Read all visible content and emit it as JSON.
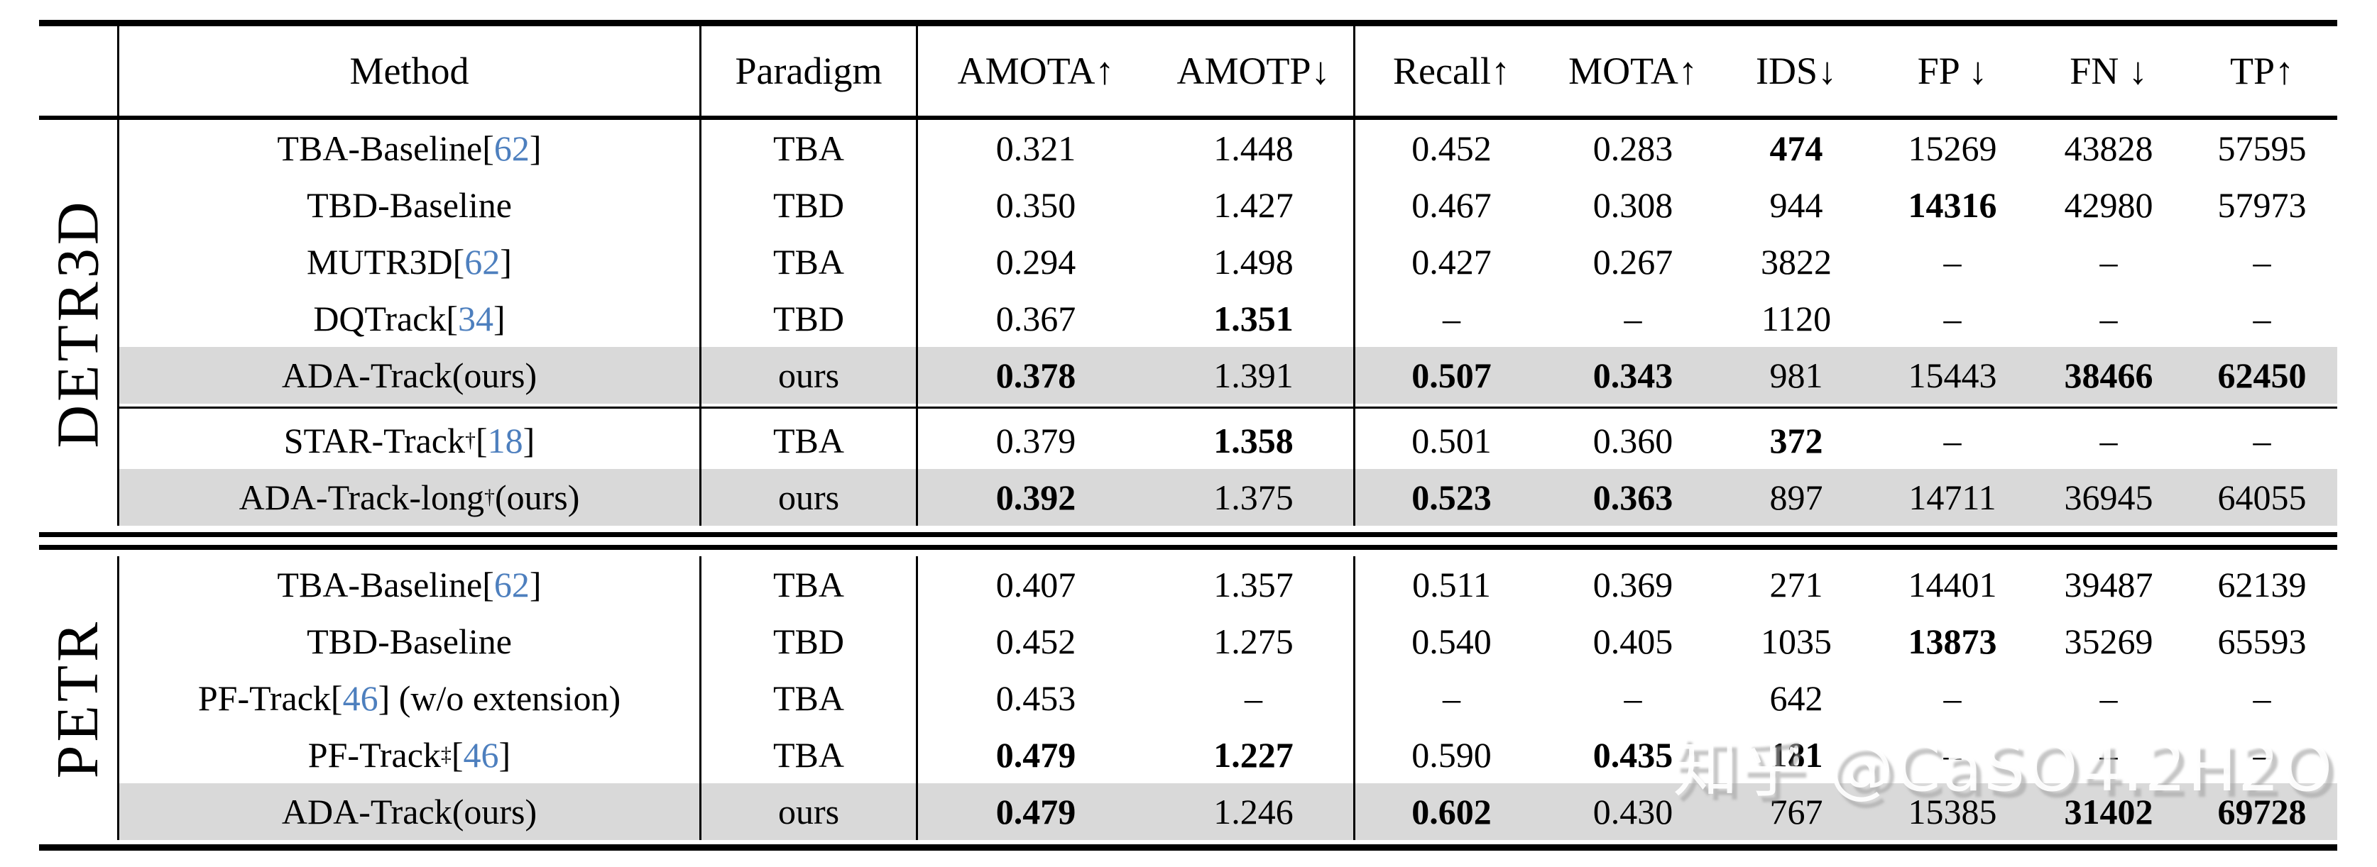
{
  "watermark": {
    "text": "知乎 @CaSO4.2H2O"
  },
  "colors": {
    "citation_blue": "#4d7fbe",
    "highlight_gray": "#d9d9d9",
    "rule_black": "#000000"
  },
  "table": {
    "columns": [
      {
        "key": "method",
        "label": "Method"
      },
      {
        "key": "paradigm",
        "label": "Paradigm"
      },
      {
        "key": "amota",
        "label": "AMOTA↑"
      },
      {
        "key": "amotp",
        "label": "AMOTP↓"
      },
      {
        "key": "recall",
        "label": "Recall↑"
      },
      {
        "key": "mota",
        "label": "MOTA↑"
      },
      {
        "key": "ids",
        "label": "IDS↓"
      },
      {
        "key": "fp",
        "label": "FP ↓"
      },
      {
        "key": "fn",
        "label": "FN ↓"
      },
      {
        "key": "tp",
        "label": "TP↑"
      }
    ],
    "groups": [
      {
        "label": "DETR3D",
        "subgroups": [
          {
            "rows": [
              {
                "highlight": false,
                "method": {
                  "name": "TBA-Baseline",
                  "sup": "",
                  "cite": "62",
                  "suffix": ""
                },
                "paradigm": "TBA",
                "metrics": [
                  {
                    "v": "0.321"
                  },
                  {
                    "v": "1.448"
                  },
                  {
                    "v": "0.452"
                  },
                  {
                    "v": "0.283"
                  },
                  {
                    "v": "474",
                    "b": true
                  },
                  {
                    "v": "15269"
                  },
                  {
                    "v": "43828"
                  },
                  {
                    "v": "57595"
                  }
                ]
              },
              {
                "highlight": false,
                "method": {
                  "name": "TBD-Baseline",
                  "sup": "",
                  "cite": "",
                  "suffix": ""
                },
                "paradigm": "TBD",
                "metrics": [
                  {
                    "v": "0.350"
                  },
                  {
                    "v": "1.427"
                  },
                  {
                    "v": "0.467"
                  },
                  {
                    "v": "0.308"
                  },
                  {
                    "v": "944"
                  },
                  {
                    "v": "14316",
                    "b": true
                  },
                  {
                    "v": "42980"
                  },
                  {
                    "v": "57973"
                  }
                ]
              },
              {
                "highlight": false,
                "method": {
                  "name": "MUTR3D",
                  "sup": "",
                  "cite": "62",
                  "suffix": ""
                },
                "paradigm": "TBA",
                "metrics": [
                  {
                    "v": "0.294"
                  },
                  {
                    "v": "1.498"
                  },
                  {
                    "v": "0.427"
                  },
                  {
                    "v": "0.267"
                  },
                  {
                    "v": "3822"
                  },
                  {
                    "v": "–"
                  },
                  {
                    "v": "–"
                  },
                  {
                    "v": "–"
                  }
                ]
              },
              {
                "highlight": false,
                "method": {
                  "name": "DQTrack",
                  "sup": "",
                  "cite": "34",
                  "suffix": ""
                },
                "paradigm": "TBD",
                "metrics": [
                  {
                    "v": "0.367"
                  },
                  {
                    "v": "1.351",
                    "b": true
                  },
                  {
                    "v": "–"
                  },
                  {
                    "v": "–"
                  },
                  {
                    "v": "1120"
                  },
                  {
                    "v": "–"
                  },
                  {
                    "v": "–"
                  },
                  {
                    "v": "–"
                  }
                ]
              },
              {
                "highlight": true,
                "method": {
                  "name": "ADA-Track",
                  "sup": "",
                  "cite": "",
                  "suffix": " (ours)"
                },
                "paradigm": "ours",
                "metrics": [
                  {
                    "v": "0.378",
                    "b": true
                  },
                  {
                    "v": "1.391"
                  },
                  {
                    "v": "0.507",
                    "b": true
                  },
                  {
                    "v": "0.343",
                    "b": true
                  },
                  {
                    "v": "981"
                  },
                  {
                    "v": "15443"
                  },
                  {
                    "v": "38466",
                    "b": true
                  },
                  {
                    "v": "62450",
                    "b": true
                  }
                ]
              }
            ]
          },
          {
            "rows": [
              {
                "highlight": false,
                "method": {
                  "name": "STAR-Track",
                  "sup": "†",
                  "cite": "18",
                  "suffix": ""
                },
                "paradigm": "TBA",
                "metrics": [
                  {
                    "v": "0.379"
                  },
                  {
                    "v": "1.358",
                    "b": true
                  },
                  {
                    "v": "0.501"
                  },
                  {
                    "v": "0.360"
                  },
                  {
                    "v": "372",
                    "b": true
                  },
                  {
                    "v": "–"
                  },
                  {
                    "v": "–"
                  },
                  {
                    "v": "–"
                  }
                ]
              },
              {
                "highlight": true,
                "method": {
                  "name": "ADA-Track-long",
                  "sup": "†",
                  "cite": "",
                  "suffix": " (ours)"
                },
                "paradigm": "ours",
                "metrics": [
                  {
                    "v": "0.392",
                    "b": true
                  },
                  {
                    "v": "1.375"
                  },
                  {
                    "v": "0.523",
                    "b": true
                  },
                  {
                    "v": "0.363",
                    "b": true
                  },
                  {
                    "v": "897"
                  },
                  {
                    "v": "14711"
                  },
                  {
                    "v": "36945"
                  },
                  {
                    "v": "64055"
                  }
                ]
              }
            ]
          }
        ]
      },
      {
        "label": "PETR",
        "subgroups": [
          {
            "rows": [
              {
                "highlight": false,
                "method": {
                  "name": "TBA-Baseline",
                  "sup": "",
                  "cite": "62",
                  "suffix": ""
                },
                "paradigm": "TBA",
                "metrics": [
                  {
                    "v": "0.407"
                  },
                  {
                    "v": "1.357"
                  },
                  {
                    "v": "0.511"
                  },
                  {
                    "v": "0.369"
                  },
                  {
                    "v": "271"
                  },
                  {
                    "v": "14401"
                  },
                  {
                    "v": "39487"
                  },
                  {
                    "v": "62139"
                  }
                ]
              },
              {
                "highlight": false,
                "method": {
                  "name": "TBD-Baseline",
                  "sup": "",
                  "cite": "",
                  "suffix": ""
                },
                "paradigm": "TBD",
                "metrics": [
                  {
                    "v": "0.452"
                  },
                  {
                    "v": "1.275"
                  },
                  {
                    "v": "0.540"
                  },
                  {
                    "v": "0.405"
                  },
                  {
                    "v": "1035"
                  },
                  {
                    "v": "13873",
                    "b": true
                  },
                  {
                    "v": "35269"
                  },
                  {
                    "v": "65593"
                  }
                ]
              },
              {
                "highlight": false,
                "method": {
                  "name": "PF-Track",
                  "sup": "",
                  "cite": "46",
                  "suffix": " (w/o extension)"
                },
                "paradigm": "TBA",
                "metrics": [
                  {
                    "v": "0.453"
                  },
                  {
                    "v": "–"
                  },
                  {
                    "v": "–"
                  },
                  {
                    "v": "–"
                  },
                  {
                    "v": "642"
                  },
                  {
                    "v": "–"
                  },
                  {
                    "v": "–"
                  },
                  {
                    "v": "–"
                  }
                ]
              },
              {
                "highlight": false,
                "method": {
                  "name": "PF-Track",
                  "sup": "‡",
                  "cite": "46",
                  "suffix": ""
                },
                "paradigm": "TBA",
                "metrics": [
                  {
                    "v": "0.479",
                    "b": true
                  },
                  {
                    "v": "1.227",
                    "b": true
                  },
                  {
                    "v": "0.590"
                  },
                  {
                    "v": "0.435",
                    "b": true
                  },
                  {
                    "v": "181",
                    "b": true
                  },
                  {
                    "v": "–"
                  },
                  {
                    "v": "–"
                  },
                  {
                    "v": "–"
                  }
                ]
              },
              {
                "highlight": true,
                "method": {
                  "name": "ADA-Track",
                  "sup": "",
                  "cite": "",
                  "suffix": " (ours)"
                },
                "paradigm": "ours",
                "metrics": [
                  {
                    "v": "0.479",
                    "b": true
                  },
                  {
                    "v": "1.246"
                  },
                  {
                    "v": "0.602",
                    "b": true
                  },
                  {
                    "v": "0.430"
                  },
                  {
                    "v": "767"
                  },
                  {
                    "v": "15385"
                  },
                  {
                    "v": "31402",
                    "b": true
                  },
                  {
                    "v": "69728",
                    "b": true
                  }
                ]
              }
            ]
          }
        ]
      }
    ]
  }
}
